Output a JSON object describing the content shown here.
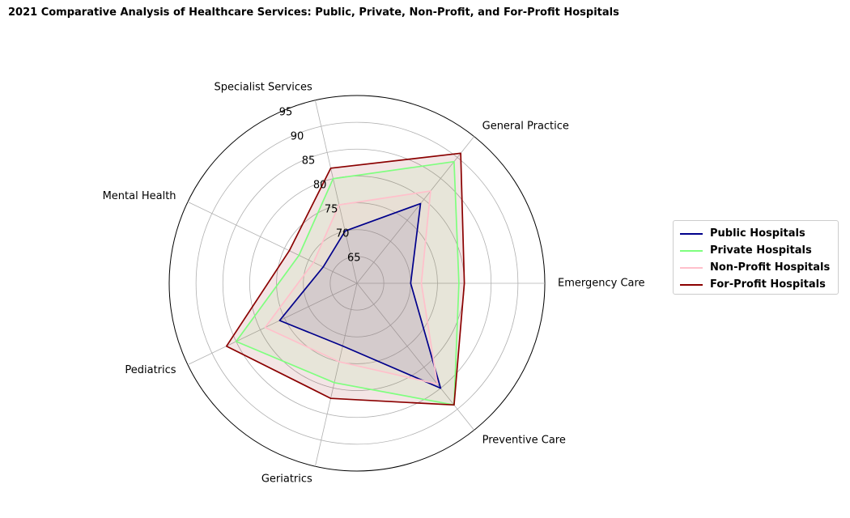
{
  "chart_data": {
    "type": "radar",
    "title": "2021 Comparative Analysis of Healthcare Services: Public, Private, Non-Profit, and For-Profit Hospitals",
    "categories": [
      "Emergency Care",
      "General Practice",
      "Specialist Services",
      "Mental Health",
      "Pediatrics",
      "Geriatrics",
      "Preventive Care"
    ],
    "series": [
      {
        "name": "Public Hospitals",
        "color": "#00008b",
        "values": [
          70,
          79,
          70,
          67,
          76,
          72,
          85
        ]
      },
      {
        "name": "Private Hospitals",
        "color": "#7fff7f",
        "values": [
          79,
          89,
          80,
          72,
          85,
          79,
          89
        ]
      },
      {
        "name": "Non-Profit Hospitals",
        "color": "#ffc0cb",
        "values": [
          72,
          82,
          75,
          69,
          79,
          75,
          84
        ]
      },
      {
        "name": "For-Profit Hospitals",
        "color": "#8b0000",
        "values": [
          80,
          91,
          82,
          74,
          87,
          82,
          89
        ]
      }
    ],
    "rlim": [
      60,
      95
    ],
    "rticks": [
      65,
      70,
      75,
      80,
      85,
      90,
      95
    ],
    "grid": true,
    "legend_position": "right"
  }
}
